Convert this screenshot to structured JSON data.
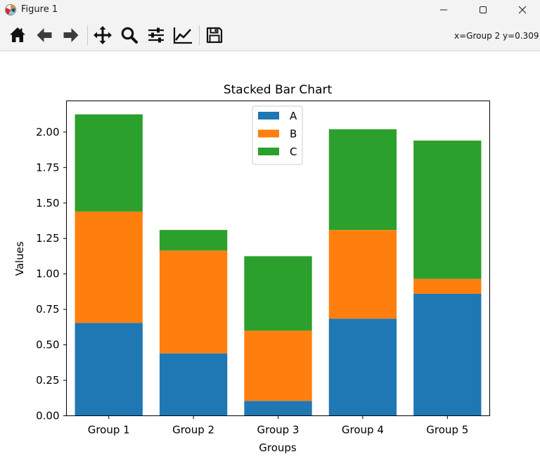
{
  "window": {
    "title": "Figure 1",
    "minimize_icon": "minimize-icon",
    "maximize_icon": "maximize-icon",
    "close_icon": "close-icon"
  },
  "toolbar": {
    "buttons": [
      "home-icon",
      "back-arrow-icon",
      "forward-arrow-icon",
      "pan-icon",
      "zoom-icon",
      "configure-subplots-icon",
      "edit-axis-icon",
      "save-icon"
    ],
    "coordinates": "x=Group 2 y=0.309"
  },
  "colors": {
    "A": "#1f77b4",
    "B": "#ff7f0e",
    "C": "#2ca02c"
  },
  "chart_data": {
    "type": "bar",
    "stacked": true,
    "title": "Stacked Bar Chart",
    "xlabel": "Groups",
    "ylabel": "Values",
    "categories": [
      "Group 1",
      "Group 2",
      "Group 3",
      "Group 4",
      "Group 5"
    ],
    "series": [
      {
        "name": "A",
        "values": [
          0.655,
          0.44,
          0.105,
          0.685,
          0.86
        ]
      },
      {
        "name": "B",
        "values": [
          0.785,
          0.725,
          0.495,
          0.625,
          0.105
        ]
      },
      {
        "name": "C",
        "values": [
          0.685,
          0.145,
          0.525,
          0.71,
          0.975
        ]
      }
    ],
    "ylim": [
      0,
      2.22
    ],
    "yticks": [
      0,
      0.25,
      0.5,
      0.75,
      1.0,
      1.25,
      1.5,
      1.75,
      2.0
    ],
    "ytick_labels": [
      "0.00",
      "0.25",
      "0.50",
      "0.75",
      "1.00",
      "1.25",
      "1.50",
      "1.75",
      "2.00"
    ],
    "legend": {
      "entries": [
        "A",
        "B",
        "C"
      ],
      "placement": "upper-center"
    },
    "grid": false
  }
}
